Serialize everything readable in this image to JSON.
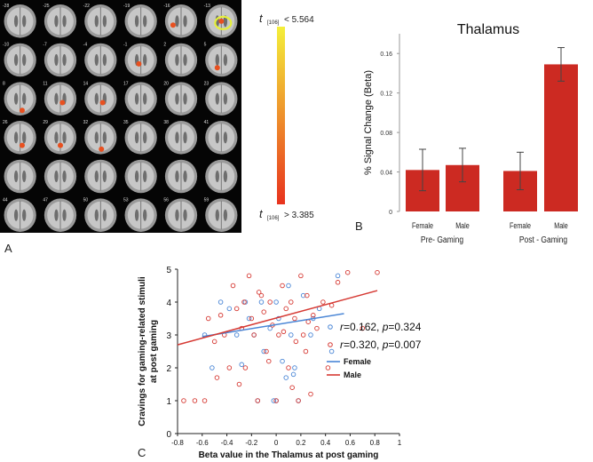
{
  "panel_labels": {
    "a": "A",
    "b": "B",
    "c": "C"
  },
  "panel_a": {
    "slice_numbers": [
      [
        "-28",
        "-25",
        "-22",
        "-19",
        "-16",
        "-13"
      ],
      [
        "-10",
        "-7",
        "-4",
        "-1",
        "2",
        "5"
      ],
      [
        "8",
        "11",
        "14",
        "17",
        "20",
        "23"
      ],
      [
        "26",
        "29",
        "32",
        "35",
        "38",
        "41"
      ],
      [
        "",
        "",
        "",
        "",
        "",
        ""
      ],
      [
        "44",
        "47",
        "50",
        "53",
        "56",
        "59"
      ]
    ],
    "colorbar": {
      "top_t": "t",
      "top_df": "[106]",
      "top_value": "< 5.564",
      "bottom_t": "t",
      "bottom_df": "[106]",
      "bottom_value": "> 3.385",
      "color_top": "#f4ef3a",
      "color_bottom": "#e8331e"
    }
  },
  "chart_data": [
    {
      "type": "bar",
      "title": "Thalamus",
      "ylabel": "% Signal Change    (Beta)",
      "ylim": [
        0,
        0.18
      ],
      "yticks": [
        "0",
        "0.04",
        "0.08",
        "0.12",
        "0.16"
      ],
      "categories": [
        "Female",
        "Male",
        "Female",
        "Male"
      ],
      "groups": [
        "Pre- Gaming",
        "Post - Gaming"
      ],
      "values": [
        0.042,
        0.047,
        0.041,
        0.149
      ],
      "errors": [
        0.021,
        0.017,
        0.019,
        0.017
      ],
      "bar_color": "#cc2a22"
    },
    {
      "type": "scatter",
      "xlabel": "Beta value in the Thalamus at post gaming",
      "ylabel_line1": "Cravings for gaming-related stimuli",
      "ylabel_line2": "at post gaming",
      "xlim": [
        -0.8,
        1
      ],
      "ylim": [
        0,
        5
      ],
      "xticks": [
        "-0.8",
        "-0.6",
        "-0.4",
        "-0.2",
        "0",
        "0.2",
        "0.4",
        "0.6",
        "0.8",
        "1"
      ],
      "yticks": [
        "0",
        "1",
        "2",
        "3",
        "4",
        "5"
      ],
      "series": [
        {
          "name": "Female",
          "color": "#4a86d6",
          "stats": {
            "r_label": "r",
            "r_value": "=0.162, ",
            "p_label": "p",
            "p_value": "=0.324"
          },
          "fit": {
            "x": [
              -0.6,
              0.55
            ],
            "y": [
              2.95,
              3.65
            ]
          },
          "points": [
            [
              -0.58,
              3.0
            ],
            [
              -0.52,
              2.0
            ],
            [
              -0.45,
              4.0
            ],
            [
              -0.32,
              3.0
            ],
            [
              -0.28,
              2.1
            ],
            [
              -0.25,
              4.0
            ],
            [
              -0.22,
              3.5
            ],
            [
              -0.18,
              3.0
            ],
            [
              -0.15,
              1.0
            ],
            [
              -0.12,
              4.0
            ],
            [
              -0.1,
              2.5
            ],
            [
              -0.05,
              3.2
            ],
            [
              -0.02,
              1.0
            ],
            [
              0.0,
              4.0
            ],
            [
              0.02,
              3.5
            ],
            [
              0.05,
              2.2
            ],
            [
              0.08,
              1.7
            ],
            [
              0.1,
              4.5
            ],
            [
              0.12,
              3.0
            ],
            [
              0.15,
              2.0
            ],
            [
              0.18,
              1.0
            ],
            [
              0.22,
              4.2
            ],
            [
              0.28,
              3.0
            ],
            [
              0.35,
              3.8
            ],
            [
              0.45,
              2.5
            ],
            [
              0.5,
              4.8
            ],
            [
              -0.38,
              3.8
            ],
            [
              0.0,
              1.0
            ],
            [
              0.3,
              3.5
            ],
            [
              0.14,
              1.8
            ]
          ]
        },
        {
          "name": "Male",
          "color": "#d63a34",
          "stats": {
            "r_label": "r",
            "r_value": "=0.320, ",
            "p_label": "p",
            "p_value": "=0.007"
          },
          "fit": {
            "x": [
              -0.8,
              0.82
            ],
            "y": [
              2.7,
              4.35
            ]
          },
          "points": [
            [
              -0.75,
              1.0
            ],
            [
              -0.66,
              1.0
            ],
            [
              -0.58,
              1.0
            ],
            [
              -0.55,
              3.5
            ],
            [
              -0.5,
              2.8
            ],
            [
              -0.48,
              1.7
            ],
            [
              -0.42,
              3.0
            ],
            [
              -0.38,
              2.0
            ],
            [
              -0.35,
              4.5
            ],
            [
              -0.32,
              3.8
            ],
            [
              -0.3,
              1.5
            ],
            [
              -0.28,
              3.2
            ],
            [
              -0.25,
              2.0
            ],
            [
              -0.22,
              4.8
            ],
            [
              -0.2,
              3.5
            ],
            [
              -0.18,
              3.0
            ],
            [
              -0.15,
              1.0
            ],
            [
              -0.12,
              4.2
            ],
            [
              -0.1,
              3.7
            ],
            [
              -0.08,
              2.5
            ],
            [
              -0.05,
              4.0
            ],
            [
              -0.03,
              3.3
            ],
            [
              0.0,
              1.0
            ],
            [
              0.02,
              3.0
            ],
            [
              0.05,
              4.5
            ],
            [
              0.08,
              3.8
            ],
            [
              0.1,
              2.0
            ],
            [
              0.12,
              4.0
            ],
            [
              0.15,
              3.5
            ],
            [
              0.18,
              1.0
            ],
            [
              0.2,
              4.8
            ],
            [
              0.22,
              3.0
            ],
            [
              0.24,
              2.5
            ],
            [
              0.25,
              4.2
            ],
            [
              0.28,
              1.2
            ],
            [
              0.3,
              3.6
            ],
            [
              0.33,
              3.2
            ],
            [
              0.38,
              4.0
            ],
            [
              0.42,
              2.0
            ],
            [
              0.45,
              3.9
            ],
            [
              0.5,
              4.6
            ],
            [
              0.58,
              4.9
            ],
            [
              0.7,
              3.2
            ],
            [
              0.82,
              4.9
            ],
            [
              -0.45,
              3.6
            ],
            [
              -0.14,
              4.3
            ],
            [
              0.06,
              3.1
            ],
            [
              0.16,
              2.8
            ],
            [
              -0.26,
              4.0
            ],
            [
              0.26,
              3.4
            ],
            [
              0.13,
              1.4
            ],
            [
              -0.06,
              2.2
            ]
          ]
        }
      ]
    }
  ]
}
